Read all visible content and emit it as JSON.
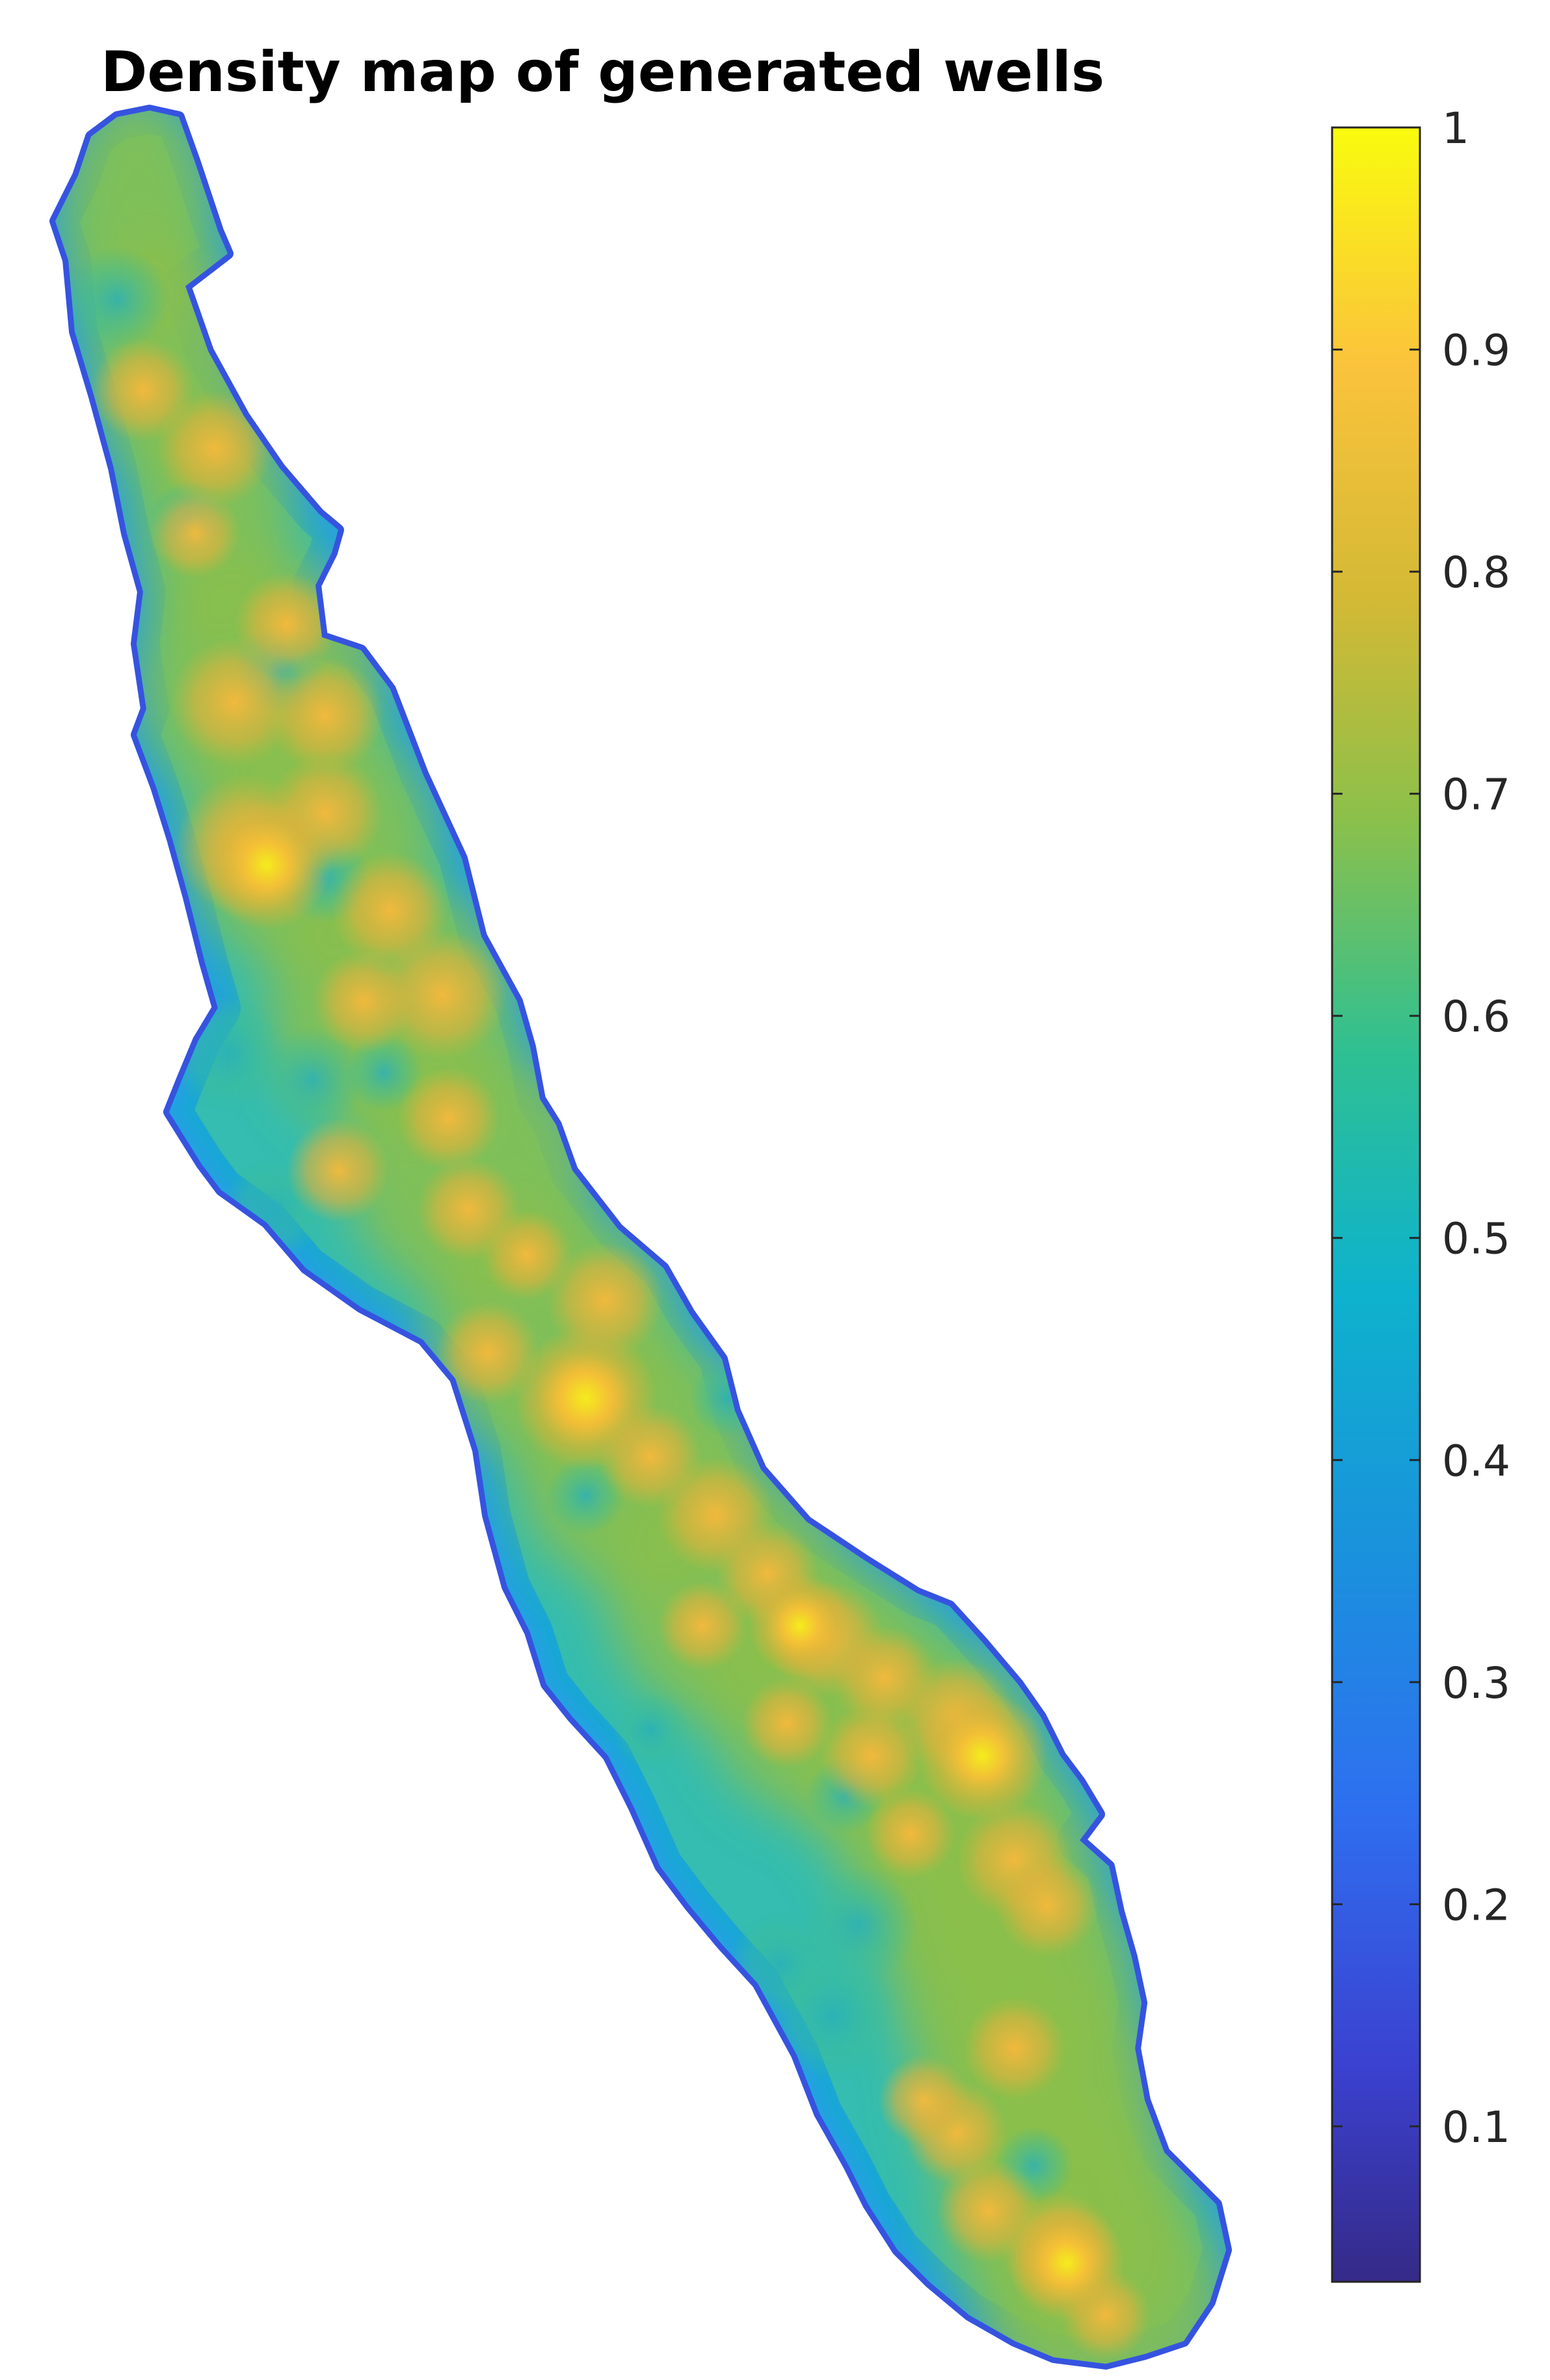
{
  "chart_data": {
    "type": "heatmap",
    "title": "Density map of generated wells",
    "xlabel": "",
    "ylabel": "",
    "axes_visible": false,
    "grid": false,
    "colormap": "parula",
    "colorbar": {
      "placement": "right",
      "range": [
        0.03,
        1
      ],
      "ticks": [
        1,
        0.9,
        0.8,
        0.7,
        0.6,
        0.5,
        0.4,
        0.3,
        0.2,
        0.1
      ],
      "tick_labels": [
        "1",
        "0.9",
        "0.8",
        "0.7",
        "0.6",
        "0.5",
        "0.4",
        "0.3",
        "0.2",
        "0.1"
      ]
    },
    "region": "elongated landmass trending from upper-left to lower-right",
    "density_peaks": [
      {
        "location": "center",
        "value": 0.98
      },
      {
        "location": "upper-center",
        "value": 0.93
      },
      {
        "location": "lower-right",
        "value": 0.92
      },
      {
        "location": "lower-middle",
        "value": 0.88
      },
      {
        "location": "bottom",
        "value": 0.86
      },
      {
        "location": "upper-left",
        "value": 0.82
      }
    ],
    "colors": {
      "low": "#352a87",
      "mid": "#0fb1d0",
      "high": "#f9fb0e"
    }
  }
}
